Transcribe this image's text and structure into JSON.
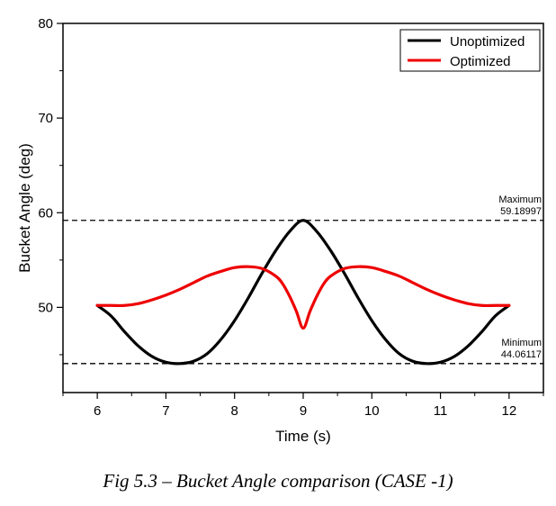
{
  "caption": "Fig 5.3 – Bucket Angle comparison (CASE -1)",
  "chart_data": {
    "type": "line",
    "title": "",
    "xlabel": "Time (s)",
    "ylabel": "Bucket Angle (deg)",
    "xlim": [
      5.5,
      12.5
    ],
    "ylim": [
      41,
      80
    ],
    "xticks": [
      6,
      7,
      8,
      9,
      10,
      11,
      12
    ],
    "yticks": [
      50,
      60,
      70,
      80
    ],
    "grid": false,
    "legend_position": "top-right",
    "series": [
      {
        "name": "Unoptimized",
        "color": "#000000",
        "x": [
          6.0,
          6.2,
          6.4,
          6.6,
          6.8,
          7.0,
          7.2,
          7.4,
          7.6,
          7.8,
          8.0,
          8.2,
          8.4,
          8.6,
          8.8,
          9.0,
          9.2,
          9.4,
          9.6,
          9.8,
          10.0,
          10.2,
          10.4,
          10.6,
          10.8,
          11.0,
          11.2,
          11.4,
          11.6,
          11.8,
          12.0
        ],
        "y": [
          50.2,
          49.1,
          47.4,
          45.9,
          44.8,
          44.2,
          44.06,
          44.3,
          45.1,
          46.6,
          48.6,
          51.0,
          53.6,
          56.0,
          58.0,
          59.19,
          58.0,
          56.0,
          53.6,
          51.0,
          48.6,
          46.6,
          45.1,
          44.3,
          44.06,
          44.2,
          44.8,
          45.9,
          47.4,
          49.1,
          50.2
        ]
      },
      {
        "name": "Optimized",
        "color": "#ee0000",
        "x": [
          6.0,
          6.2,
          6.4,
          6.6,
          6.8,
          7.0,
          7.2,
          7.4,
          7.6,
          7.8,
          8.0,
          8.2,
          8.4,
          8.6,
          8.7,
          8.8,
          8.9,
          9.0,
          9.1,
          9.2,
          9.3,
          9.4,
          9.6,
          9.8,
          10.0,
          10.2,
          10.4,
          10.6,
          10.8,
          11.0,
          11.2,
          11.4,
          11.6,
          11.8,
          12.0
        ],
        "y": [
          50.2,
          50.2,
          50.2,
          50.4,
          50.8,
          51.3,
          51.9,
          52.6,
          53.3,
          53.8,
          54.2,
          54.3,
          54.1,
          53.3,
          52.5,
          51.2,
          49.6,
          47.8,
          49.6,
          51.2,
          52.5,
          53.3,
          54.1,
          54.3,
          54.2,
          53.8,
          53.3,
          52.6,
          51.9,
          51.3,
          50.8,
          50.4,
          50.2,
          50.2,
          50.2
        ]
      }
    ],
    "reference_lines": [
      {
        "label": "Maximum",
        "value": 59.18997,
        "value_text": "59.18997",
        "style": "dashed"
      },
      {
        "label": "Minimum",
        "value": 44.06117,
        "value_text": "44.06117",
        "style": "dashed"
      }
    ]
  }
}
